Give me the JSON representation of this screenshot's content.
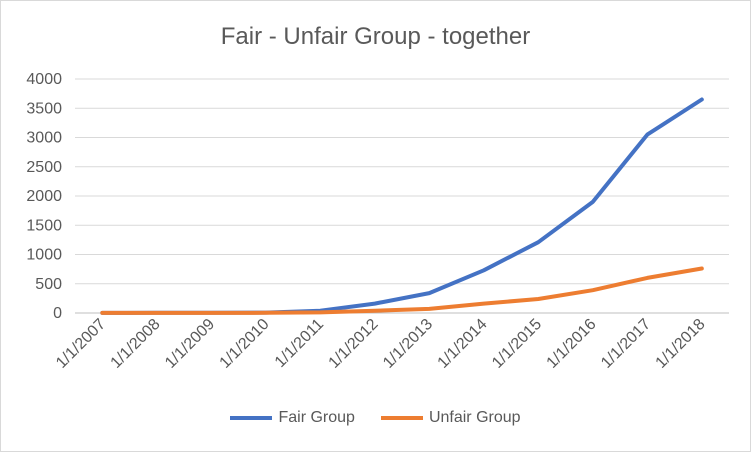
{
  "chart_data": {
    "type": "line",
    "title": "Fair - Unfair Group - together",
    "xlabel": "",
    "ylabel": "",
    "ylim": [
      0,
      4000
    ],
    "yticks": [
      0,
      500,
      1000,
      1500,
      2000,
      2500,
      3000,
      3500,
      4000
    ],
    "categories": [
      "1/1/2007",
      "1/1/2008",
      "1/1/2009",
      "1/1/2010",
      "1/1/2011",
      "1/1/2012",
      "1/1/2013",
      "1/1/2014",
      "1/1/2015",
      "1/1/2016",
      "1/1/2017",
      "1/1/2018"
    ],
    "grid": true,
    "legend": "bottom",
    "series": [
      {
        "name": "Fair Group",
        "color": "#4472c4",
        "values": [
          2,
          3,
          4,
          6,
          40,
          160,
          340,
          730,
          1210,
          1900,
          3050,
          3650
        ]
      },
      {
        "name": "Unfair Group",
        "color": "#ed7d31",
        "values": [
          1,
          1,
          2,
          3,
          10,
          40,
          70,
          160,
          240,
          390,
          600,
          760
        ]
      }
    ]
  }
}
